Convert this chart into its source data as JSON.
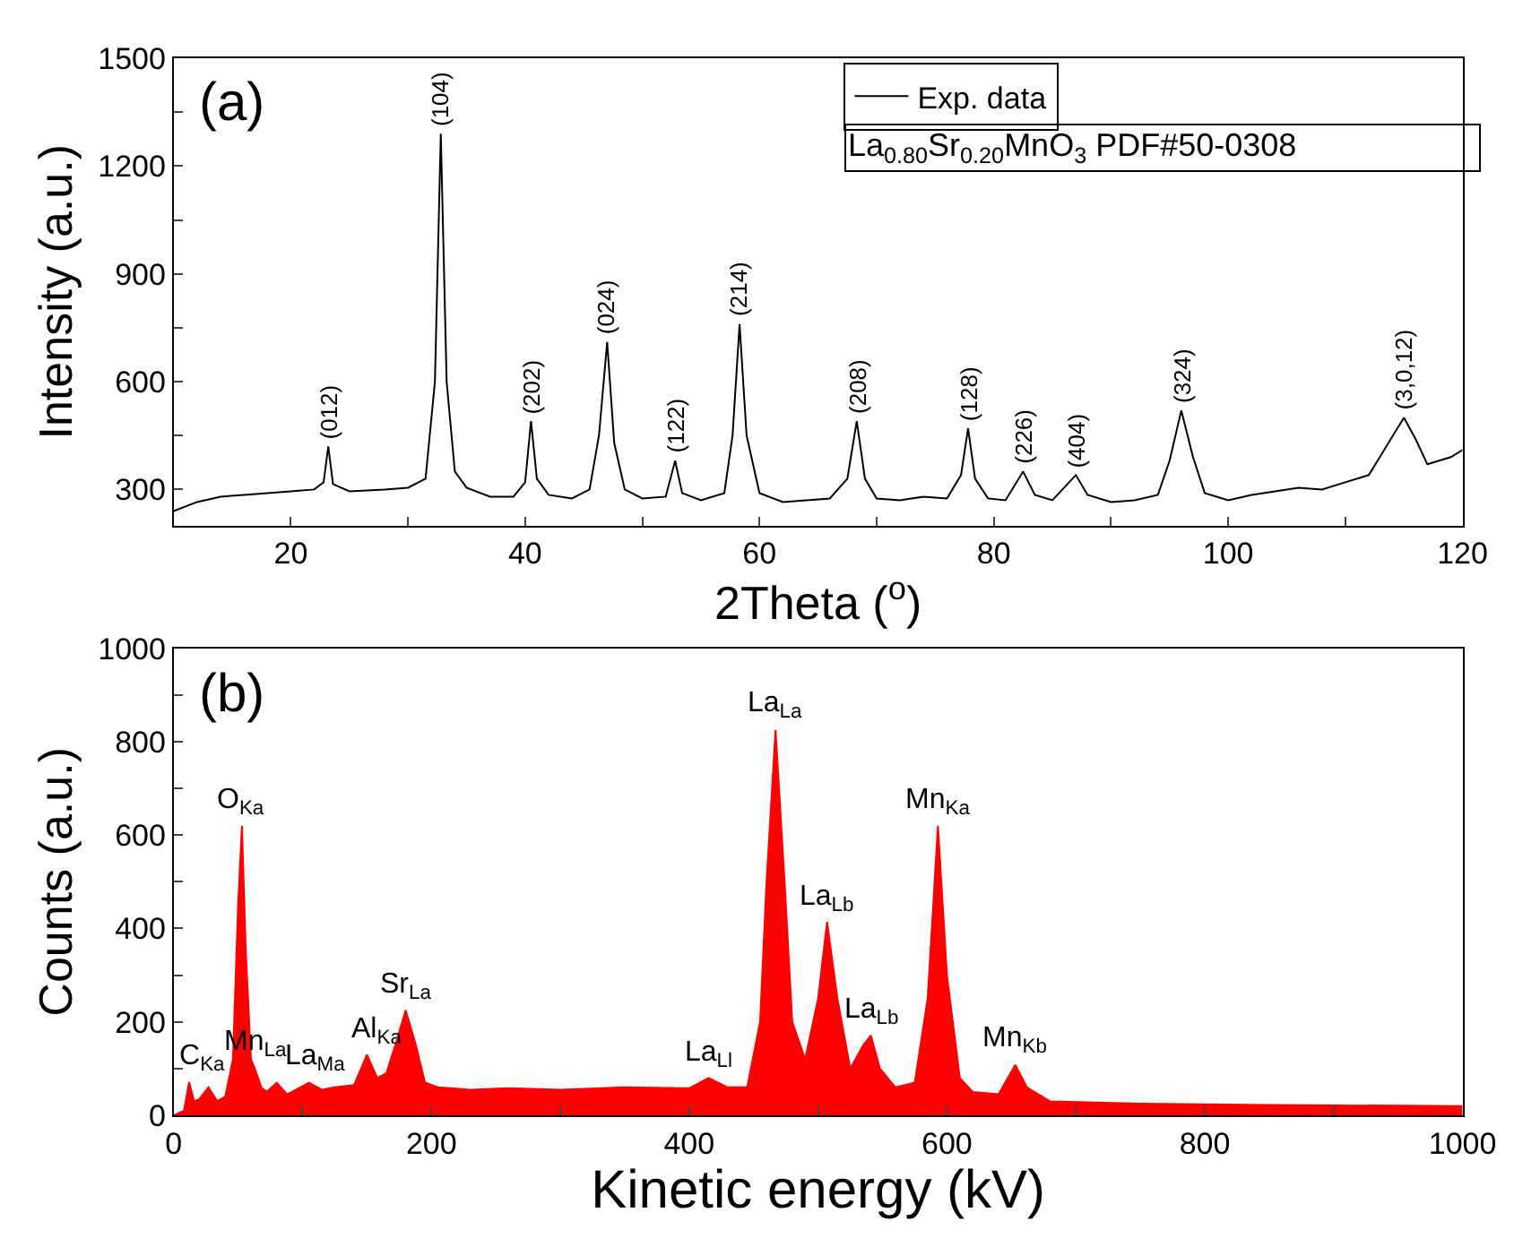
{
  "chart_data": [
    {
      "type": "line",
      "xlabel": "2Theta ($^{o}$)",
      "ylabel": "Intensity (a.u.)",
      "annotations": [
        "(a)",
        "La$_{0.80}$Sr$_{0.20}$MnO$_{3}$ PDF#50-0308",
        {
          "text": "(012)",
          "x": 23.2,
          "y": 420
        },
        {
          "text": "(104)",
          "x": 32.8,
          "y": 1290
        },
        {
          "text": "(202)",
          "x": 40.5,
          "y": 490
        },
        {
          "text": "(024)",
          "x": 47,
          "y": 710
        },
        {
          "text": "(122)",
          "x": 52.8,
          "y": 380
        },
        {
          "text": "(214)",
          "x": 58.3,
          "y": 760
        },
        {
          "text": "(208)",
          "x": 68.3,
          "y": 490
        },
        {
          "text": "(128)",
          "x": 77.8,
          "y": 470
        },
        {
          "text": "(226)",
          "x": 82.5,
          "y": 350
        },
        {
          "text": "(404)",
          "x": 87,
          "y": 340
        },
        {
          "text": "(324)",
          "x": 96,
          "y": 520
        },
        {
          "text": "(3,0,12)",
          "x": 115,
          "y": 500
        }
      ],
      "series": [
        {
          "name": "Exp. data",
          "color": "#000000",
          "x": [
            10,
            12,
            14,
            16,
            18,
            20,
            22,
            22.8,
            23.2,
            23.6,
            25,
            28,
            30,
            31.5,
            32.3,
            32.8,
            33.3,
            34,
            35,
            37,
            39,
            40,
            40.5,
            41,
            42,
            44,
            45.5,
            46.3,
            47,
            47.6,
            48.5,
            50,
            52,
            52.8,
            53.4,
            55,
            57,
            57.7,
            58.3,
            58.9,
            60,
            62,
            64,
            66,
            67.5,
            68.3,
            69,
            70,
            72,
            74,
            76,
            77.2,
            77.8,
            78.4,
            79.5,
            81,
            82.5,
            83.5,
            85,
            87,
            88,
            90,
            92,
            94,
            95,
            96,
            97,
            98,
            100,
            102,
            104,
            106,
            108,
            110,
            112,
            113.5,
            115,
            116,
            117,
            118,
            119,
            120
          ],
          "values": [
            240,
            265,
            280,
            285,
            290,
            295,
            300,
            320,
            420,
            315,
            295,
            300,
            305,
            330,
            600,
            1290,
            600,
            350,
            305,
            280,
            280,
            320,
            490,
            330,
            285,
            275,
            300,
            450,
            710,
            430,
            300,
            275,
            280,
            380,
            290,
            270,
            290,
            450,
            760,
            450,
            290,
            265,
            270,
            275,
            330,
            490,
            330,
            275,
            270,
            280,
            275,
            340,
            470,
            330,
            275,
            270,
            350,
            285,
            270,
            340,
            285,
            265,
            270,
            285,
            380,
            520,
            390,
            290,
            270,
            285,
            295,
            305,
            300,
            320,
            340,
            420,
            500,
            440,
            370,
            380,
            390,
            410
          ]
        }
      ],
      "xlim": [
        10,
        120
      ],
      "ylim": [
        200,
        1500
      ],
      "xticks": [
        20,
        {
          "value": 30,
          "label": null
        },
        40,
        {
          "value": 50,
          "label": null
        },
        60,
        {
          "value": 70,
          "label": null
        },
        80,
        {
          "value": 90,
          "label": null
        },
        100,
        {
          "value": 110,
          "label": null
        },
        120
      ],
      "yticks": [
        300,
        {
          "value": 450,
          "label": null
        },
        600,
        {
          "value": 750,
          "label": null
        },
        900,
        {
          "value": 1050,
          "label": null
        },
        1200,
        {
          "value": 1350,
          "label": null
        },
        1500
      ],
      "legend": "top right",
      "grid": false,
      "line_style": "solid"
    },
    {
      "type": "area",
      "xlabel": "Kinetic energy (kV)",
      "ylabel": "Counts (a.u.)",
      "annotations": [
        "(b)",
        {
          "text": "C$_{Ka}$",
          "x": 12,
          "y": 71
        },
        {
          "text": "O$_{Ka}$",
          "x": 53,
          "y": 620
        },
        {
          "text": "Mn$_{La}$",
          "x": 63,
          "y": 100
        },
        {
          "text": "La$_{Ma}$",
          "x": 105,
          "y": 70
        },
        {
          "text": "Al$_{Ka}$",
          "x": 150,
          "y": 130
        },
        {
          "text": "Sr$_{La}$",
          "x": 180,
          "y": 225
        },
        {
          "text": "La$_{Ll}$",
          "x": 415,
          "y": 80
        },
        {
          "text": "La$_{La}$",
          "x": 467,
          "y": 825
        },
        {
          "text": "La$_{Lb}$",
          "x": 507,
          "y": 414
        },
        {
          "text": "La$_{Lb}$",
          "x": 541,
          "y": 171
        },
        {
          "text": "Mn$_{Ka}$",
          "x": 593,
          "y": 620
        },
        {
          "text": "Mn$_{Kb}$",
          "x": 653,
          "y": 108
        }
      ],
      "series": [
        {
          "color": "#ff0000",
          "x": [
            0,
            8,
            12,
            16,
            20,
            27,
            34,
            40,
            46,
            50,
            53,
            56,
            60,
            63,
            68,
            72,
            80,
            88,
            95,
            105,
            115,
            125,
            140,
            150,
            158,
            165,
            172,
            180,
            188,
            195,
            205,
            230,
            260,
            300,
            350,
            400,
            415,
            430,
            445,
            455,
            460,
            467,
            474,
            480,
            490,
            500,
            507,
            515,
            525,
            535,
            541,
            548,
            560,
            575,
            585,
            593,
            600,
            610,
            620,
            640,
            653,
            662,
            680,
            750,
            850,
            1000
          ],
          "values": [
            0,
            10,
            71,
            30,
            35,
            60,
            30,
            40,
            120,
            450,
            620,
            350,
            120,
            100,
            60,
            50,
            70,
            45,
            55,
            70,
            55,
            60,
            65,
            130,
            80,
            90,
            150,
            225,
            150,
            70,
            60,
            55,
            58,
            55,
            60,
            58,
            80,
            60,
            60,
            200,
            500,
            825,
            500,
            200,
            120,
            250,
            414,
            250,
            100,
            150,
            171,
            100,
            60,
            70,
            250,
            620,
            300,
            80,
            50,
            45,
            108,
            60,
            30,
            25,
            22,
            20
          ]
        }
      ],
      "xlim": [
        0,
        1000
      ],
      "ylim": [
        0,
        1000
      ],
      "xticks": [
        0,
        {
          "value": 100,
          "label": null
        },
        200,
        {
          "value": 300,
          "label": null
        },
        400,
        {
          "value": 500,
          "label": null
        },
        600,
        {
          "value": 700,
          "label": null
        },
        800,
        {
          "value": 900,
          "label": null
        },
        1000
      ],
      "yticks": [
        0,
        {
          "value": 100,
          "label": null
        },
        200,
        {
          "value": 300,
          "label": null
        },
        400,
        {
          "value": 500,
          "label": null
        },
        600,
        {
          "value": 700,
          "label": null
        },
        800,
        {
          "value": 900,
          "label": null
        },
        1000
      ],
      "grid": false,
      "legend": false
    }
  ]
}
